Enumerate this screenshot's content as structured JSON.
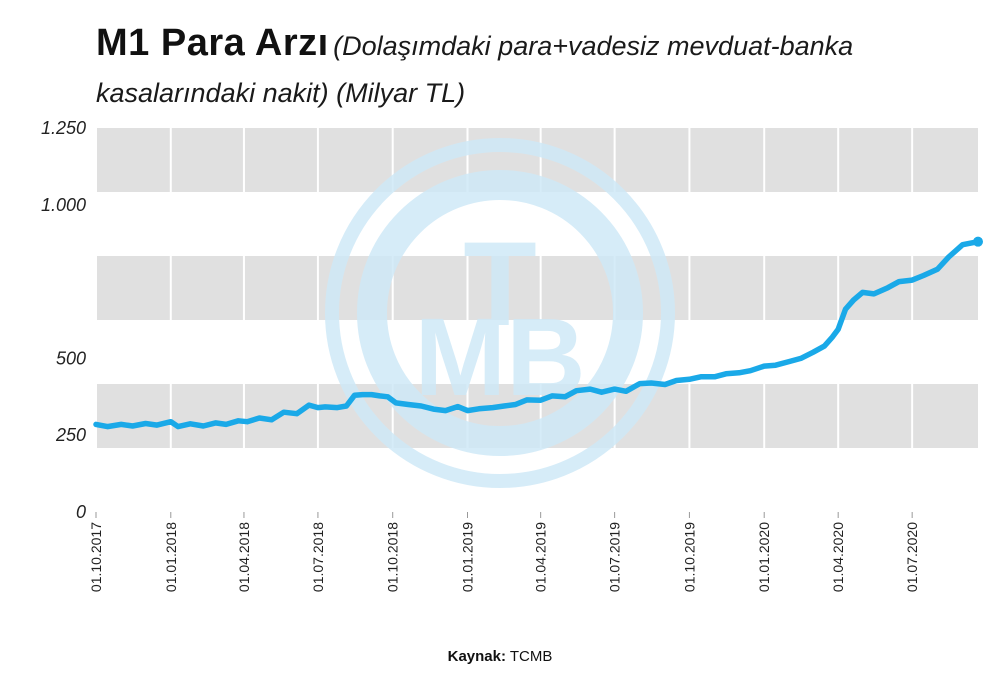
{
  "header": {
    "title": "M1 Para Arzı",
    "subtitle": "(Dolaşımdaki para+vadesiz mevduat-banka kasalarındaki nakit) (Milyar TL)"
  },
  "watermark": {
    "letters": "TCMB",
    "color": "#cfe9f7"
  },
  "source": {
    "label": "Kaynak:",
    "value": "TCMB"
  },
  "chart_data": {
    "type": "line",
    "title": "M1 Para Arzı",
    "ylabel": "Milyar TL",
    "ylim": [
      0,
      1250
    ],
    "yticks": [
      {
        "value": 0,
        "label": "0"
      },
      {
        "value": 250,
        "label": "250"
      },
      {
        "value": 500,
        "label": "500"
      },
      {
        "value": 1000,
        "label": "1.000"
      },
      {
        "value": 1250,
        "label": "1.250"
      }
    ],
    "x_range": [
      "2017-10-01",
      "2020-09-20"
    ],
    "xtick_labels": [
      "01.10.2017",
      "01.01.2018",
      "01.04.2018",
      "01.07.2018",
      "01.10.2018",
      "01.01.2019",
      "01.04.2019",
      "01.07.2019",
      "01.10.2019",
      "01.01.2020",
      "01.04.2020",
      "01.07.2020"
    ],
    "grid": true,
    "line_color": "#1aa9e8",
    "band_color": "#e0e0e0",
    "series": [
      {
        "x": [
          "2017-10-01",
          "2017-10-15",
          "2017-11-01",
          "2017-11-15",
          "2017-12-01",
          "2017-12-15",
          "2018-01-01",
          "2018-01-10",
          "2018-01-25",
          "2018-02-10",
          "2018-02-25",
          "2018-03-10",
          "2018-03-25",
          "2018-04-05",
          "2018-04-20",
          "2018-05-05",
          "2018-05-20",
          "2018-06-05",
          "2018-06-20",
          "2018-07-01",
          "2018-07-10",
          "2018-07-25",
          "2018-08-05",
          "2018-08-15",
          "2018-08-25",
          "2018-09-05",
          "2018-09-15",
          "2018-09-25",
          "2018-10-05",
          "2018-10-20",
          "2018-11-05",
          "2018-11-20",
          "2018-12-05",
          "2018-12-20",
          "2019-01-01",
          "2019-01-15",
          "2019-02-01",
          "2019-02-15",
          "2019-03-01",
          "2019-03-15",
          "2019-04-01",
          "2019-04-15",
          "2019-05-01",
          "2019-05-15",
          "2019-06-01",
          "2019-06-15",
          "2019-07-01",
          "2019-07-15",
          "2019-08-01",
          "2019-08-15",
          "2019-09-01",
          "2019-09-15",
          "2019-10-01",
          "2019-10-15",
          "2019-11-01",
          "2019-11-15",
          "2019-12-01",
          "2019-12-15",
          "2020-01-01",
          "2020-01-15",
          "2020-02-01",
          "2020-02-15",
          "2020-03-01",
          "2020-03-15",
          "2020-03-25",
          "2020-04-01",
          "2020-04-10",
          "2020-04-20",
          "2020-05-01",
          "2020-05-15",
          "2020-06-01",
          "2020-06-15",
          "2020-07-01",
          "2020-07-15",
          "2020-08-01",
          "2020-08-15",
          "2020-09-01",
          "2020-09-20"
        ],
        "values": [
          285,
          278,
          285,
          280,
          288,
          283,
          294,
          278,
          287,
          280,
          290,
          285,
          297,
          294,
          306,
          300,
          325,
          320,
          348,
          340,
          342,
          340,
          345,
          380,
          382,
          382,
          378,
          375,
          355,
          350,
          345,
          335,
          330,
          343,
          330,
          336,
          340,
          345,
          350,
          365,
          364,
          378,
          375,
          395,
          400,
          390,
          400,
          393,
          418,
          420,
          415,
          428,
          432,
          440,
          440,
          450,
          453,
          460,
          475,
          478,
          490,
          500,
          520,
          540,
          570,
          595,
          660,
          690,
          715,
          710,
          730,
          750,
          755,
          770,
          790,
          830,
          870,
          880
        ]
      }
    ]
  }
}
